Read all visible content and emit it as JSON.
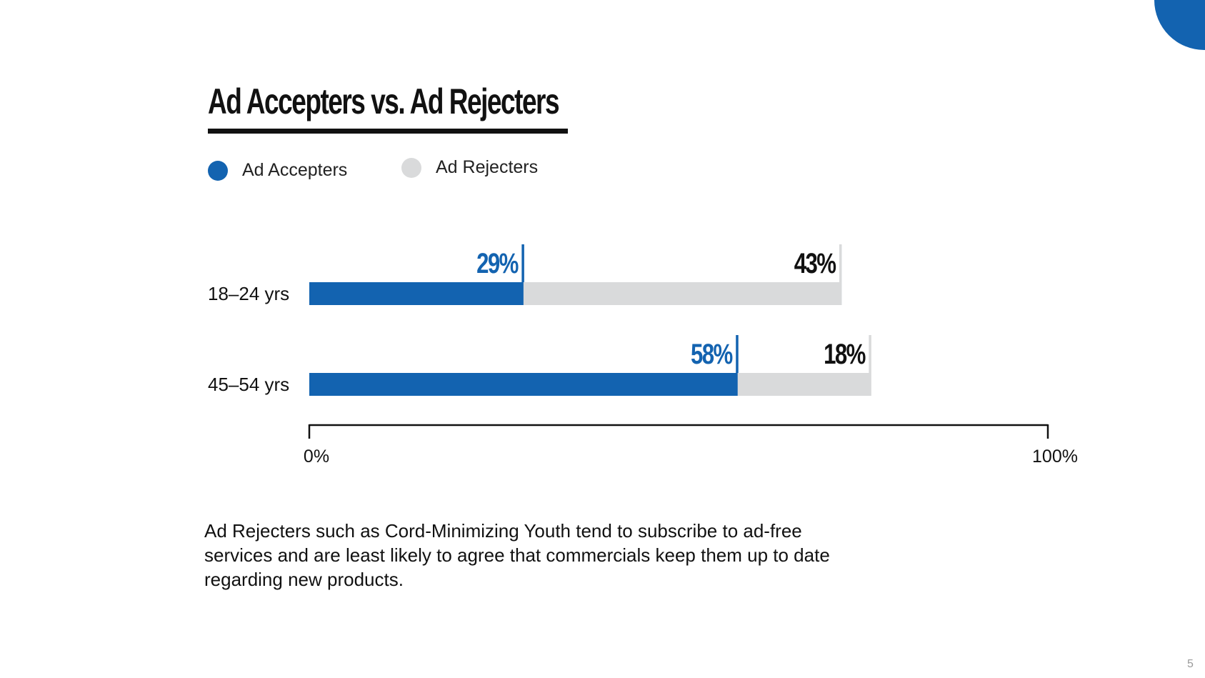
{
  "chart_data": {
    "type": "bar",
    "stacked": true,
    "orientation": "horizontal",
    "title": "Ad Accepters vs. Ad Rejecters",
    "categories": [
      "18–24 yrs",
      "45–54 yrs"
    ],
    "series": [
      {
        "name": "Ad Accepters",
        "values": [
          29,
          58
        ],
        "color": "#1363b0"
      },
      {
        "name": "Ad Rejecters",
        "values": [
          43,
          18
        ],
        "color": "#d9dadb"
      }
    ],
    "value_labels": [
      [
        "29%",
        "43%"
      ],
      [
        "58%",
        "18%"
      ]
    ],
    "xlim": [
      0,
      100
    ],
    "x_ticks": [
      "0%",
      "100%"
    ],
    "legend_position": "top-left",
    "grid": false
  },
  "footnote": "Ad Rejecters such as Cord-Minimizing Youth tend to subscribe to ad-free services and are least likely to agree that commercials keep them up to date regarding new products.",
  "page_number": "5",
  "colors": {
    "accent": "#1363b0",
    "rejecter_gray": "#d9dadb",
    "text": "#111111"
  }
}
